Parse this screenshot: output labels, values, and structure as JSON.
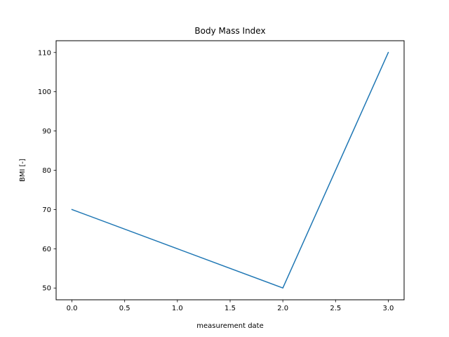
{
  "chart_data": {
    "type": "line",
    "title": "Body Mass Index",
    "xlabel": "measurement date",
    "ylabel": "BMI [-]",
    "xlim": [
      -0.15,
      3.15
    ],
    "ylim": [
      47,
      113
    ],
    "x_ticks": [
      0.0,
      0.5,
      1.0,
      1.5,
      2.0,
      2.5,
      3.0
    ],
    "x_tick_labels": [
      "0.0",
      "0.5",
      "1.0",
      "1.5",
      "2.0",
      "2.5",
      "3.0"
    ],
    "y_ticks": [
      50,
      60,
      70,
      80,
      90,
      100,
      110
    ],
    "y_tick_labels": [
      "50",
      "60",
      "70",
      "80",
      "90",
      "100",
      "110"
    ],
    "grid": false,
    "legend": "none",
    "series": [
      {
        "x": [
          0,
          1,
          2,
          3
        ],
        "y": [
          70,
          60,
          50,
          110
        ],
        "color": "#1f77b4"
      }
    ]
  }
}
